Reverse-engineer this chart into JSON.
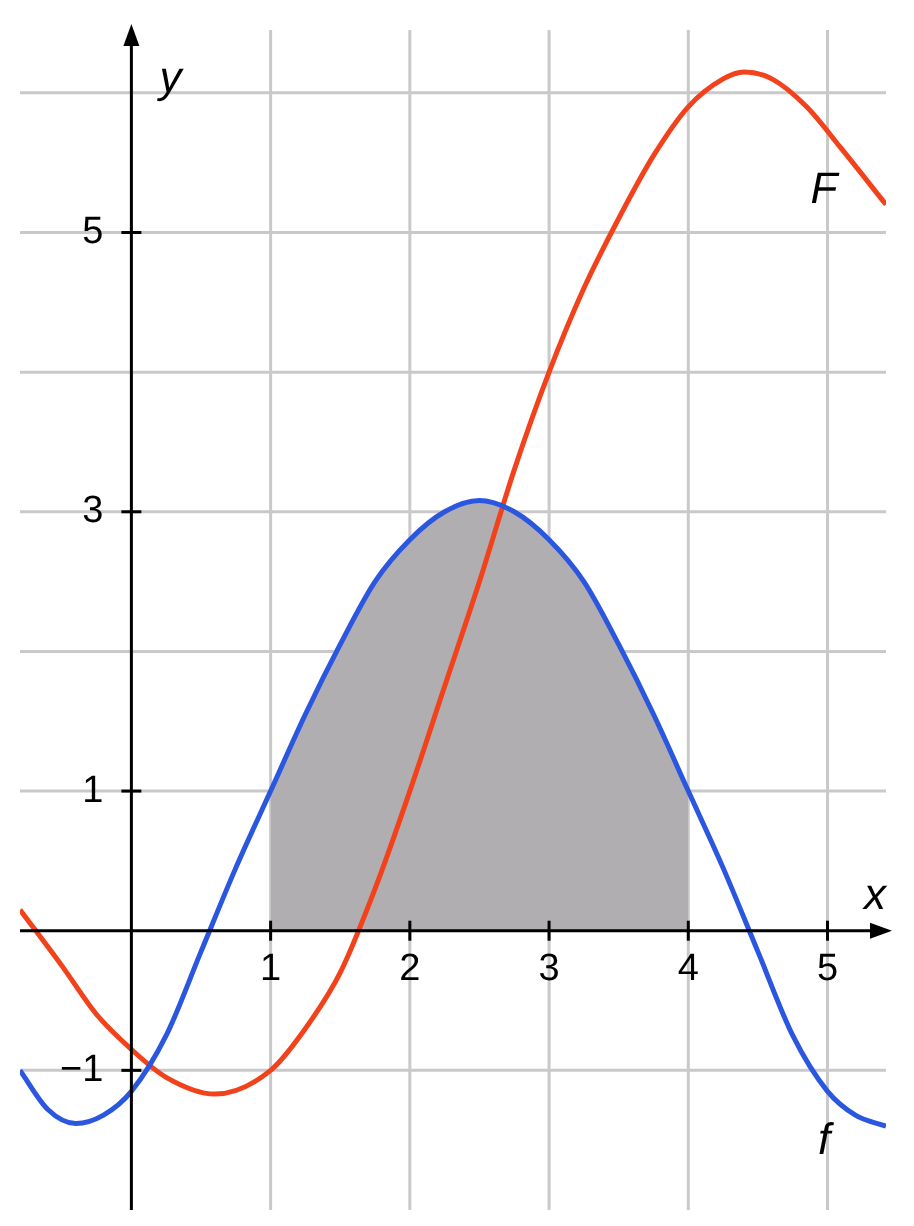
{
  "chart_data": {
    "type": "line",
    "xlabel": "x",
    "ylabel": "y",
    "xlim": [
      -0.8,
      5.42
    ],
    "ylim": [
      -2.0,
      6.45
    ],
    "xticks": [
      1,
      2,
      3,
      4,
      5
    ],
    "yticks": [
      {
        "value": -1,
        "label": "−1"
      },
      1,
      {
        "value": 2,
        "label": null
      },
      3,
      {
        "value": 4,
        "label": null
      },
      5,
      {
        "value": 6,
        "label": null
      }
    ],
    "grid": true,
    "legend": false,
    "marker": "none",
    "line_style": "solid",
    "series": [
      {
        "type": "area",
        "color": "#b1aeb1",
        "x": [
          1,
          1.25,
          1.5,
          1.75,
          2,
          2.25,
          2.5,
          2.75,
          3,
          3.25,
          3.5,
          3.75,
          4
        ],
        "values": [
          1.0,
          1.55,
          2.05,
          2.5,
          2.8,
          3.0,
          3.08,
          3.0,
          2.8,
          2.5,
          2.05,
          1.55,
          1.0
        ]
      },
      {
        "type": "line",
        "name": "f",
        "color": "#2b57e0",
        "x": [
          -0.8,
          -0.6,
          -0.4,
          -0.2,
          0,
          0.25,
          0.5,
          0.75,
          1,
          1.25,
          1.5,
          1.75,
          2,
          2.25,
          2.5,
          2.75,
          3,
          3.25,
          3.5,
          3.75,
          4,
          4.25,
          4.5,
          4.75,
          5,
          5.2,
          5.42
        ],
        "values": [
          -1.0,
          -1.28,
          -1.38,
          -1.32,
          -1.15,
          -0.75,
          -0.15,
          0.45,
          1.0,
          1.55,
          2.05,
          2.5,
          2.8,
          3.0,
          3.08,
          3.0,
          2.8,
          2.5,
          2.05,
          1.55,
          1.0,
          0.45,
          -0.15,
          -0.75,
          -1.15,
          -1.32,
          -1.4
        ]
      },
      {
        "type": "line",
        "name": "F",
        "color": "#f2421b",
        "x": [
          -0.8,
          -0.5,
          -0.25,
          0,
          0.25,
          0.6,
          1,
          1.25,
          1.5,
          1.75,
          2,
          2.25,
          2.5,
          2.75,
          3,
          3.25,
          3.5,
          3.75,
          4,
          4.25,
          4.4,
          4.6,
          4.85,
          5.1,
          5.42
        ],
        "values": [
          0.15,
          -0.25,
          -0.6,
          -0.85,
          -1.05,
          -1.17,
          -1.0,
          -0.7,
          -0.3,
          0.3,
          1.0,
          1.75,
          2.5,
          3.3,
          4.0,
          4.6,
          5.1,
          5.55,
          5.9,
          6.1,
          6.15,
          6.1,
          5.9,
          5.6,
          5.2
        ]
      }
    ]
  }
}
